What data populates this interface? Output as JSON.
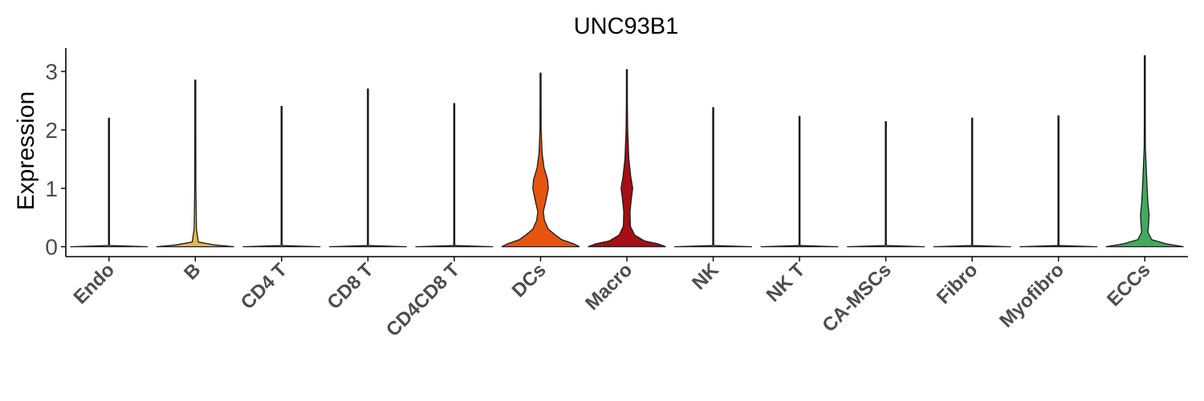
{
  "chart_data": {
    "type": "violin",
    "title": "UNC93B1",
    "xlabel": "",
    "ylabel": "Expression",
    "ylim": [
      -0.17,
      3.4
    ],
    "yticks": [
      0,
      1,
      2,
      3
    ],
    "grid": false,
    "legend": "none",
    "categories": [
      "Endo",
      "B",
      "CD4 T",
      "CD8 T",
      "CD4CD8 T",
      "DCs",
      "Macro",
      "NK",
      "NK T",
      "CA-MSCs",
      "Fibro",
      "Myofibro",
      "ECCs"
    ],
    "colors": [
      "#e6c94a",
      "#e8b84a",
      "#9ecae1",
      "#6baed6",
      "#3182bd",
      "#e6550d",
      "#a50f15",
      "#c994c7",
      "#dd1c77",
      "#74c476",
      "#31a354",
      "#006d2c",
      "#41ab5d"
    ],
    "max_values": [
      2.2,
      2.85,
      2.4,
      2.7,
      2.45,
      2.97,
      3.03,
      2.38,
      2.23,
      2.14,
      2.2,
      2.24,
      3.27
    ],
    "densities": [
      [
        [
          0,
          1
        ],
        [
          0.02,
          0.02
        ],
        [
          0.05,
          0.0
        ],
        [
          1,
          0.0
        ],
        [
          2.2,
          0.0
        ]
      ],
      [
        [
          0,
          1
        ],
        [
          0.03,
          0.5
        ],
        [
          0.08,
          0.08
        ],
        [
          0.3,
          0.03
        ],
        [
          1.0,
          0.015
        ],
        [
          2.0,
          0.008
        ],
        [
          2.85,
          0.0
        ]
      ],
      [
        [
          0,
          1
        ],
        [
          0.02,
          0.02
        ],
        [
          0.05,
          0.0
        ],
        [
          2.4,
          0.0
        ]
      ],
      [
        [
          0,
          1
        ],
        [
          0.02,
          0.02
        ],
        [
          0.05,
          0.0
        ],
        [
          2.7,
          0.0
        ]
      ],
      [
        [
          0,
          1
        ],
        [
          0.02,
          0.02
        ],
        [
          0.05,
          0.0
        ],
        [
          2.45,
          0.0
        ]
      ],
      [
        [
          0,
          1
        ],
        [
          0.05,
          0.85
        ],
        [
          0.12,
          0.55
        ],
        [
          0.2,
          0.38
        ],
        [
          0.3,
          0.2
        ],
        [
          0.45,
          0.1
        ],
        [
          0.6,
          0.07
        ],
        [
          0.8,
          0.14
        ],
        [
          1.0,
          0.2
        ],
        [
          1.15,
          0.18
        ],
        [
          1.35,
          0.09
        ],
        [
          1.6,
          0.04
        ],
        [
          2.0,
          0.015
        ],
        [
          2.5,
          0.006
        ],
        [
          2.97,
          0.0
        ]
      ],
      [
        [
          0,
          1
        ],
        [
          0.05,
          0.8
        ],
        [
          0.1,
          0.45
        ],
        [
          0.2,
          0.2
        ],
        [
          0.35,
          0.09
        ],
        [
          0.6,
          0.08
        ],
        [
          0.85,
          0.12
        ],
        [
          1.0,
          0.15
        ],
        [
          1.2,
          0.1
        ],
        [
          1.5,
          0.05
        ],
        [
          2.0,
          0.02
        ],
        [
          2.5,
          0.008
        ],
        [
          3.03,
          0.0
        ]
      ],
      [
        [
          0,
          1
        ],
        [
          0.02,
          0.02
        ],
        [
          0.05,
          0.0
        ],
        [
          2.38,
          0.0
        ]
      ],
      [
        [
          0,
          1
        ],
        [
          0.02,
          0.02
        ],
        [
          0.05,
          0.0
        ],
        [
          2.23,
          0.0
        ]
      ],
      [
        [
          0,
          1
        ],
        [
          0.02,
          0.02
        ],
        [
          0.05,
          0.0
        ],
        [
          2.14,
          0.0
        ]
      ],
      [
        [
          0,
          1
        ],
        [
          0.02,
          0.02
        ],
        [
          0.05,
          0.0
        ],
        [
          2.2,
          0.0
        ]
      ],
      [
        [
          0,
          1
        ],
        [
          0.02,
          0.02
        ],
        [
          0.05,
          0.0
        ],
        [
          2.24,
          0.0
        ]
      ],
      [
        [
          0,
          1
        ],
        [
          0.05,
          0.55
        ],
        [
          0.12,
          0.18
        ],
        [
          0.25,
          0.08
        ],
        [
          0.4,
          0.1
        ],
        [
          0.55,
          0.11
        ],
        [
          0.75,
          0.08
        ],
        [
          1.0,
          0.06
        ],
        [
          1.3,
          0.04
        ],
        [
          1.7,
          0.015
        ],
        [
          2.2,
          0.006
        ],
        [
          3.27,
          0.0
        ]
      ]
    ]
  }
}
